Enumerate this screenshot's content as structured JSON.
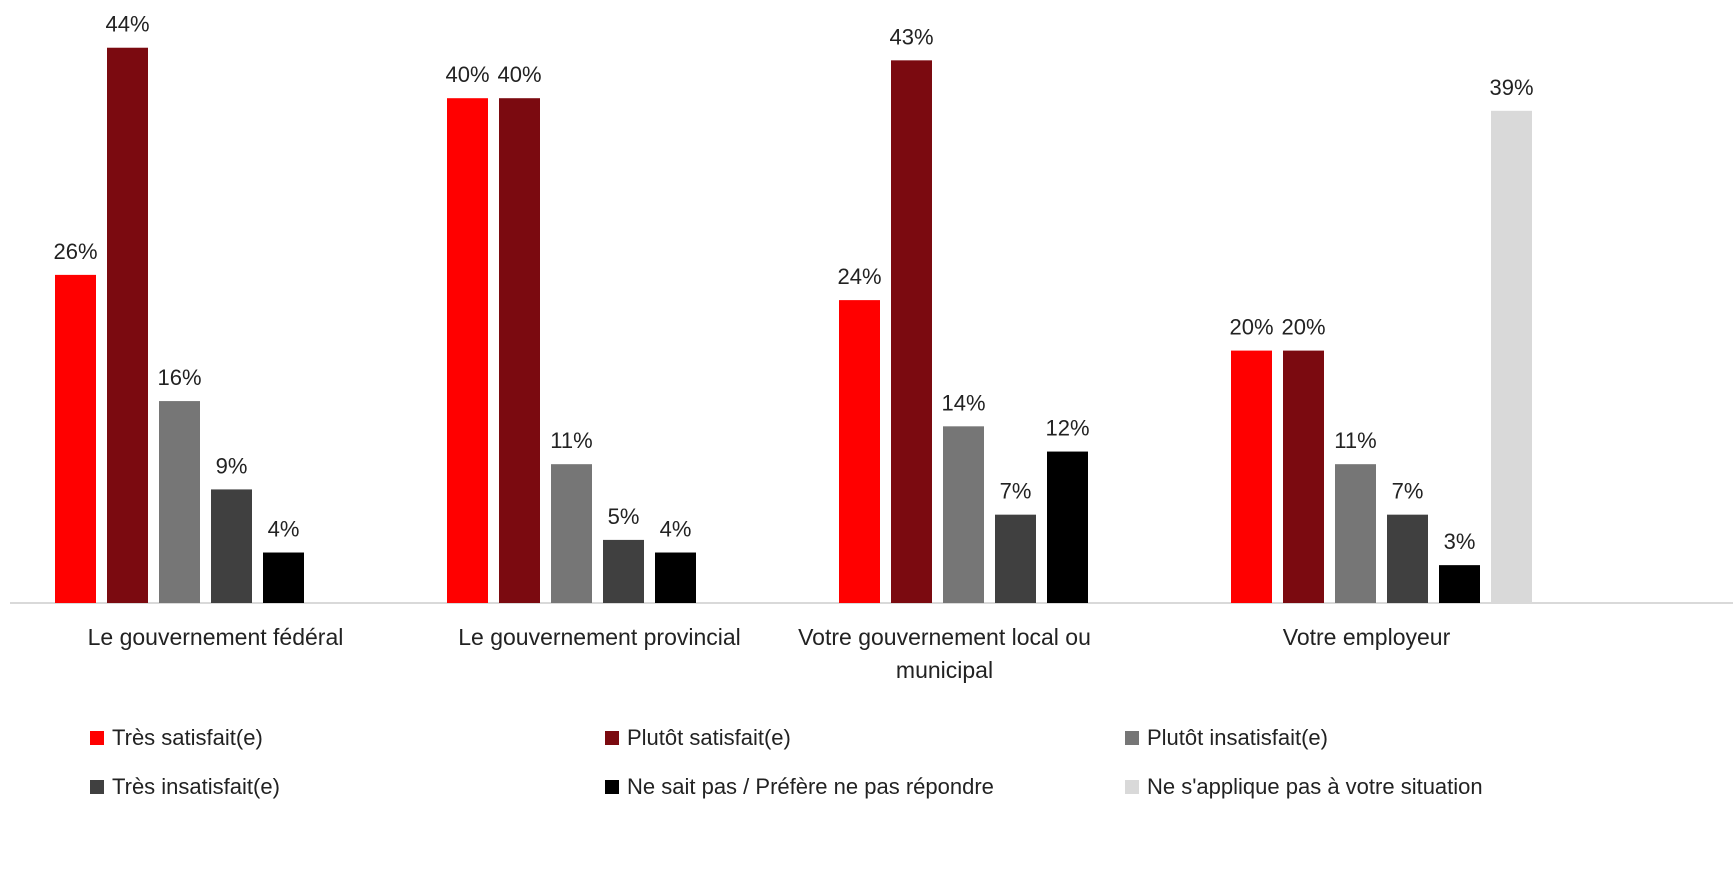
{
  "chart_data": {
    "type": "bar",
    "categories": [
      "Le gouvernement fédéral",
      "Le gouvernement provincial",
      "Votre gouvernement local ou municipal",
      "Votre employeur"
    ],
    "category_lines": [
      [
        "Le gouvernement fédéral"
      ],
      [
        "Le gouvernement provincial"
      ],
      [
        "Votre gouvernement local ou",
        "municipal"
      ],
      [
        "Votre employeur"
      ]
    ],
    "series": [
      {
        "name": "Très satisfait(e)",
        "color": "#ff0000",
        "values": [
          26,
          40,
          24,
          20
        ],
        "labels": [
          "26%",
          "40%",
          "24%",
          "20%"
        ]
      },
      {
        "name": "Plutôt satisfait(e)",
        "color": "#7b0a10",
        "values": [
          44,
          40,
          43,
          20
        ],
        "labels": [
          "44%",
          "40%",
          "43%",
          "20%"
        ]
      },
      {
        "name": "Plutôt insatisfait(e)",
        "color": "#767676",
        "values": [
          16,
          11,
          14,
          11
        ],
        "labels": [
          "16%",
          "11%",
          "14%",
          "11%"
        ]
      },
      {
        "name": "Très insatisfait(e)",
        "color": "#404040",
        "values": [
          9,
          5,
          7,
          7
        ],
        "labels": [
          "9%",
          "5%",
          "7%",
          "7%"
        ]
      },
      {
        "name": "Ne sait pas / Préfère ne pas répondre",
        "color": "#000000",
        "values": [
          4,
          4,
          12,
          3
        ],
        "labels": [
          "4%",
          "4%",
          "12%",
          "3%"
        ]
      },
      {
        "name": "Ne s'applique pas à votre situation",
        "color": "#d9d9d9",
        "values": [
          null,
          null,
          null,
          39
        ],
        "labels": [
          null,
          null,
          null,
          "39%"
        ]
      }
    ],
    "unit": "%",
    "ylim": [
      0,
      48
    ],
    "grid": false,
    "legend_position": "bottom"
  }
}
